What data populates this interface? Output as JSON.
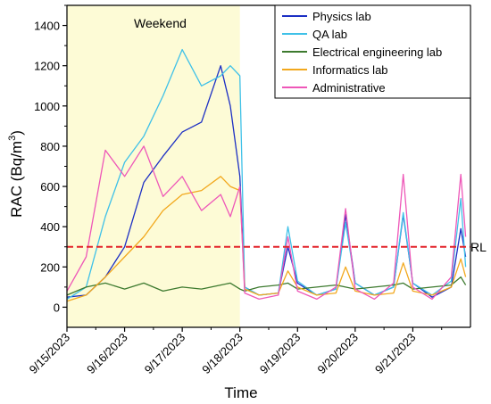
{
  "chart_data": {
    "type": "line",
    "title": "",
    "xlabel": "Time",
    "ylabel": {
      "main": "RAC (Bq/m",
      "sup": "3",
      "tail": ")"
    },
    "xlim": [
      "2023-09-15",
      "2023-09-22"
    ],
    "ylim": [
      -100,
      1500
    ],
    "yticks": [
      0,
      200,
      400,
      600,
      800,
      1000,
      1200,
      1400
    ],
    "xticks": [
      {
        "date": "2023-09-15",
        "label": "9/15/2023"
      },
      {
        "date": "2023-09-16",
        "label": "9/16/2023"
      },
      {
        "date": "2023-09-17",
        "label": "9/17/2023"
      },
      {
        "date": "2023-09-18",
        "label": "9/18/2023"
      },
      {
        "date": "2023-09-19",
        "label": "9/19/2023"
      },
      {
        "date": "2023-09-20",
        "label": "9/20/2023"
      },
      {
        "date": "2023-09-21",
        "label": "9/21/2023"
      }
    ],
    "shaded_region": {
      "start": "2023-09-15",
      "end": "2023-09-18",
      "label": "Weekend",
      "color": "#fdfbd6"
    },
    "reference_line": {
      "value": 300,
      "label": "RL",
      "color": "#e3242b",
      "style": "dashed"
    },
    "legend_position": "top-right",
    "series": [
      {
        "name": "Physics lab",
        "color": "#1c2fc4",
        "points": [
          [
            "2023-09-15T00:00",
            50
          ],
          [
            "2023-09-15T08:00",
            60
          ],
          [
            "2023-09-15T16:00",
            150
          ],
          [
            "2023-09-16T00:00",
            300
          ],
          [
            "2023-09-16T08:00",
            620
          ],
          [
            "2023-09-16T16:00",
            750
          ],
          [
            "2023-09-17T00:00",
            870
          ],
          [
            "2023-09-17T08:00",
            920
          ],
          [
            "2023-09-17T16:00",
            1200
          ],
          [
            "2023-09-17T20:00",
            1000
          ],
          [
            "2023-09-18T00:00",
            650
          ],
          [
            "2023-09-18T02:00",
            100
          ],
          [
            "2023-09-18T08:00",
            60
          ],
          [
            "2023-09-18T16:00",
            70
          ],
          [
            "2023-09-18T20:00",
            300
          ],
          [
            "2023-09-19T00:00",
            120
          ],
          [
            "2023-09-19T08:00",
            60
          ],
          [
            "2023-09-19T16:00",
            90
          ],
          [
            "2023-09-19T20:00",
            460
          ],
          [
            "2023-09-20T00:00",
            120
          ],
          [
            "2023-09-20T08:00",
            60
          ],
          [
            "2023-09-20T16:00",
            100
          ],
          [
            "2023-09-20T20:00",
            460
          ],
          [
            "2023-09-21T00:00",
            120
          ],
          [
            "2023-09-21T08:00",
            50
          ],
          [
            "2023-09-21T16:00",
            100
          ],
          [
            "2023-09-21T20:00",
            390
          ],
          [
            "2023-09-21T22:00",
            250
          ]
        ]
      },
      {
        "name": "QA lab",
        "color": "#3fc1e8",
        "points": [
          [
            "2023-09-15T00:00",
            40
          ],
          [
            "2023-09-15T08:00",
            100
          ],
          [
            "2023-09-15T16:00",
            450
          ],
          [
            "2023-09-16T00:00",
            720
          ],
          [
            "2023-09-16T08:00",
            850
          ],
          [
            "2023-09-16T16:00",
            1050
          ],
          [
            "2023-09-17T00:00",
            1280
          ],
          [
            "2023-09-17T08:00",
            1100
          ],
          [
            "2023-09-17T16:00",
            1150
          ],
          [
            "2023-09-17T20:00",
            1200
          ],
          [
            "2023-09-18T00:00",
            1150
          ],
          [
            "2023-09-18T02:00",
            100
          ],
          [
            "2023-09-18T08:00",
            60
          ],
          [
            "2023-09-18T16:00",
            70
          ],
          [
            "2023-09-18T20:00",
            400
          ],
          [
            "2023-09-19T00:00",
            130
          ],
          [
            "2023-09-19T08:00",
            60
          ],
          [
            "2023-09-19T16:00",
            90
          ],
          [
            "2023-09-19T20:00",
            420
          ],
          [
            "2023-09-20T00:00",
            120
          ],
          [
            "2023-09-20T08:00",
            60
          ],
          [
            "2023-09-20T16:00",
            100
          ],
          [
            "2023-09-20T20:00",
            470
          ],
          [
            "2023-09-21T00:00",
            120
          ],
          [
            "2023-09-21T08:00",
            60
          ],
          [
            "2023-09-21T16:00",
            130
          ],
          [
            "2023-09-21T20:00",
            540
          ],
          [
            "2023-09-21T22:00",
            200
          ]
        ]
      },
      {
        "name": "Electrical engineering lab",
        "color": "#3d7a2f",
        "points": [
          [
            "2023-09-15T00:00",
            60
          ],
          [
            "2023-09-15T08:00",
            100
          ],
          [
            "2023-09-15T16:00",
            120
          ],
          [
            "2023-09-16T00:00",
            90
          ],
          [
            "2023-09-16T08:00",
            120
          ],
          [
            "2023-09-16T16:00",
            80
          ],
          [
            "2023-09-17T00:00",
            100
          ],
          [
            "2023-09-17T08:00",
            90
          ],
          [
            "2023-09-17T16:00",
            110
          ],
          [
            "2023-09-17T20:00",
            120
          ],
          [
            "2023-09-18T00:00",
            90
          ],
          [
            "2023-09-18T02:00",
            80
          ],
          [
            "2023-09-18T08:00",
            100
          ],
          [
            "2023-09-18T16:00",
            110
          ],
          [
            "2023-09-18T20:00",
            120
          ],
          [
            "2023-09-19T00:00",
            90
          ],
          [
            "2023-09-19T08:00",
            100
          ],
          [
            "2023-09-19T16:00",
            110
          ],
          [
            "2023-09-19T20:00",
            100
          ],
          [
            "2023-09-20T00:00",
            90
          ],
          [
            "2023-09-20T08:00",
            100
          ],
          [
            "2023-09-20T16:00",
            110
          ],
          [
            "2023-09-20T20:00",
            120
          ],
          [
            "2023-09-21T00:00",
            90
          ],
          [
            "2023-09-21T08:00",
            100
          ],
          [
            "2023-09-21T16:00",
            110
          ],
          [
            "2023-09-21T20:00",
            150
          ],
          [
            "2023-09-21T22:00",
            110
          ]
        ]
      },
      {
        "name": "Informatics lab",
        "color": "#f2a81d",
        "points": [
          [
            "2023-09-15T00:00",
            30
          ],
          [
            "2023-09-15T08:00",
            60
          ],
          [
            "2023-09-15T16:00",
            150
          ],
          [
            "2023-09-16T00:00",
            250
          ],
          [
            "2023-09-16T08:00",
            350
          ],
          [
            "2023-09-16T16:00",
            480
          ],
          [
            "2023-09-17T00:00",
            560
          ],
          [
            "2023-09-17T08:00",
            580
          ],
          [
            "2023-09-17T16:00",
            650
          ],
          [
            "2023-09-17T20:00",
            600
          ],
          [
            "2023-09-18T00:00",
            580
          ],
          [
            "2023-09-18T02:00",
            90
          ],
          [
            "2023-09-18T08:00",
            60
          ],
          [
            "2023-09-18T16:00",
            70
          ],
          [
            "2023-09-18T20:00",
            180
          ],
          [
            "2023-09-19T00:00",
            100
          ],
          [
            "2023-09-19T08:00",
            60
          ],
          [
            "2023-09-19T16:00",
            70
          ],
          [
            "2023-09-19T20:00",
            200
          ],
          [
            "2023-09-20T00:00",
            80
          ],
          [
            "2023-09-20T08:00",
            60
          ],
          [
            "2023-09-20T16:00",
            70
          ],
          [
            "2023-09-20T20:00",
            220
          ],
          [
            "2023-09-21T00:00",
            80
          ],
          [
            "2023-09-21T08:00",
            60
          ],
          [
            "2023-09-21T16:00",
            100
          ],
          [
            "2023-09-21T20:00",
            240
          ],
          [
            "2023-09-21T22:00",
            150
          ]
        ]
      },
      {
        "name": "Administrative",
        "color": "#ee57b8",
        "points": [
          [
            "2023-09-15T00:00",
            80
          ],
          [
            "2023-09-15T08:00",
            250
          ],
          [
            "2023-09-15T16:00",
            780
          ],
          [
            "2023-09-16T00:00",
            650
          ],
          [
            "2023-09-16T08:00",
            800
          ],
          [
            "2023-09-16T16:00",
            550
          ],
          [
            "2023-09-17T00:00",
            650
          ],
          [
            "2023-09-17T08:00",
            480
          ],
          [
            "2023-09-17T16:00",
            560
          ],
          [
            "2023-09-17T20:00",
            450
          ],
          [
            "2023-09-18T00:00",
            600
          ],
          [
            "2023-09-18T02:00",
            70
          ],
          [
            "2023-09-18T08:00",
            40
          ],
          [
            "2023-09-18T16:00",
            60
          ],
          [
            "2023-09-18T20:00",
            350
          ],
          [
            "2023-09-19T00:00",
            80
          ],
          [
            "2023-09-19T08:00",
            40
          ],
          [
            "2023-09-19T16:00",
            100
          ],
          [
            "2023-09-19T20:00",
            490
          ],
          [
            "2023-09-20T00:00",
            90
          ],
          [
            "2023-09-20T08:00",
            40
          ],
          [
            "2023-09-20T16:00",
            120
          ],
          [
            "2023-09-20T20:00",
            660
          ],
          [
            "2023-09-21T00:00",
            100
          ],
          [
            "2023-09-21T08:00",
            40
          ],
          [
            "2023-09-21T16:00",
            150
          ],
          [
            "2023-09-21T20:00",
            660
          ],
          [
            "2023-09-21T22:00",
            350
          ]
        ]
      }
    ]
  }
}
